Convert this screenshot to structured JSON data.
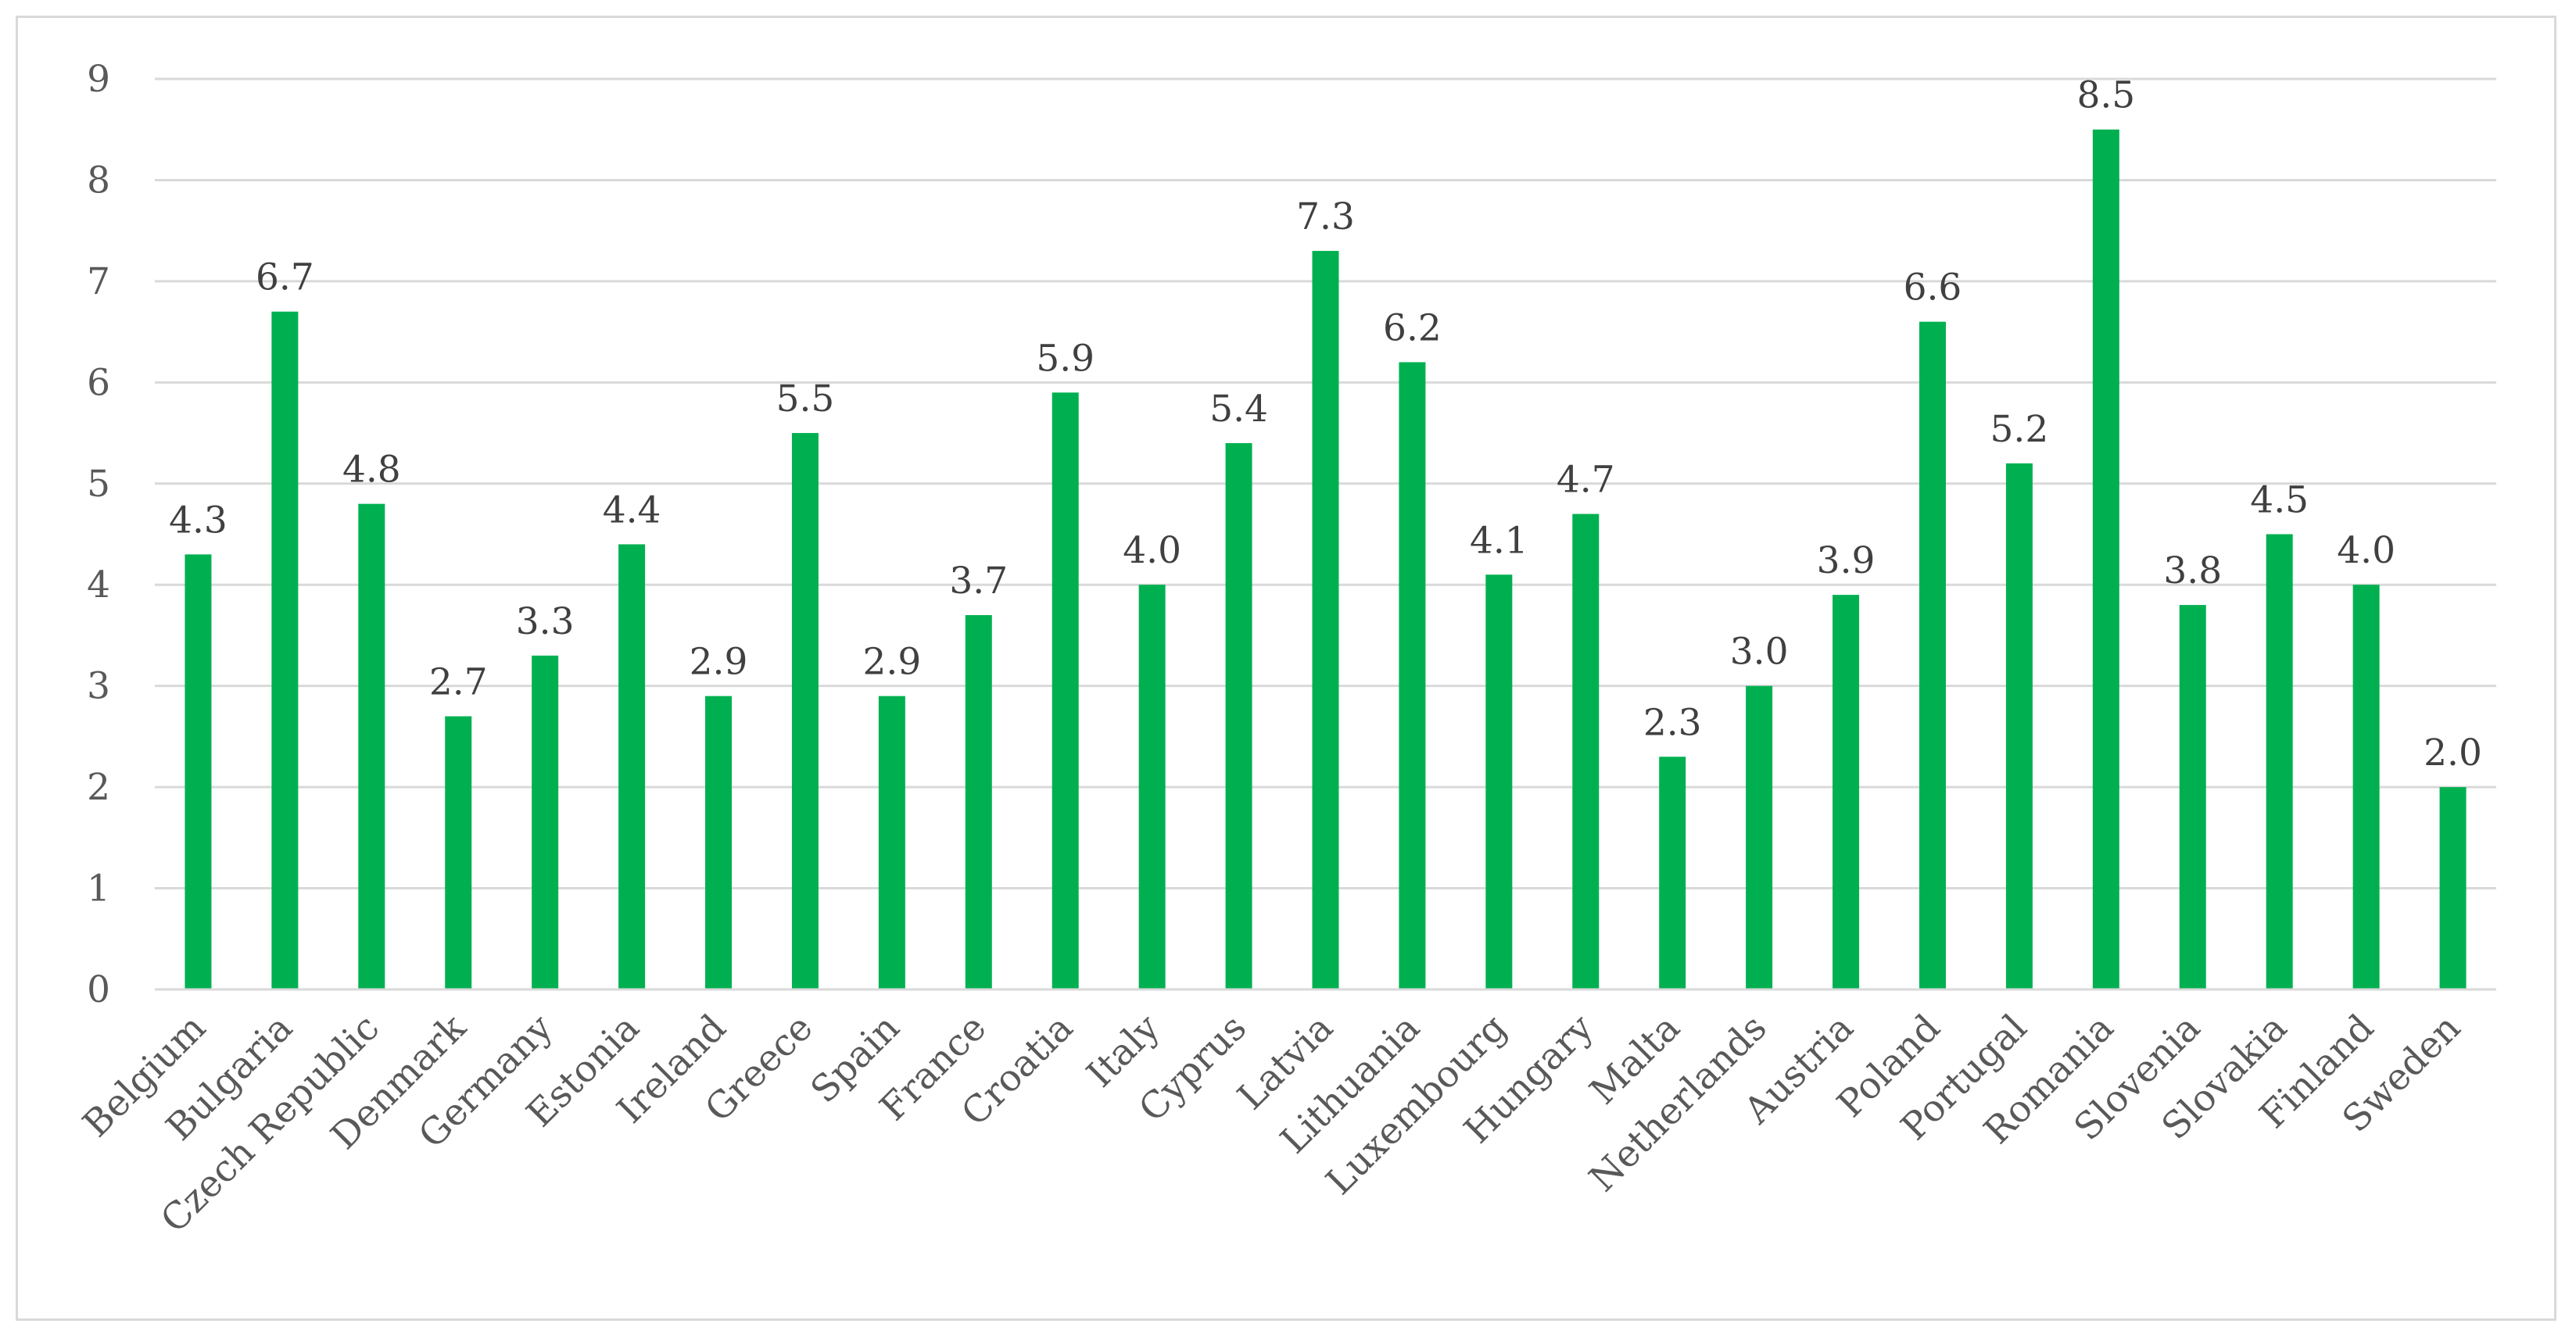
{
  "chart_data": {
    "type": "bar",
    "title": "",
    "xlabel": "",
    "ylabel": "",
    "ylim": [
      0,
      9
    ],
    "yticks": [
      0,
      1,
      2,
      3,
      4,
      5,
      6,
      7,
      8,
      9
    ],
    "grid": true,
    "legend": "none",
    "bar_color": "#00b050",
    "categories": [
      "Belgium",
      "Bulgaria",
      "Czech Republic",
      "Denmark",
      "Germany",
      "Estonia",
      "Ireland",
      "Greece",
      "Spain",
      "France",
      "Croatia",
      "Italy",
      "Cyprus",
      "Latvia",
      "Lithuania",
      "Luxembourg",
      "Hungary",
      "Malta",
      "Netherlands",
      "Austria",
      "Poland",
      "Portugal",
      "Romania",
      "Slovenia",
      "Slovakia",
      "Finland",
      "Sweden"
    ],
    "values": [
      4.3,
      6.7,
      4.8,
      2.7,
      3.3,
      4.4,
      2.9,
      5.5,
      2.9,
      3.7,
      5.9,
      4.0,
      5.4,
      7.3,
      6.2,
      4.1,
      4.7,
      2.3,
      3.0,
      3.9,
      6.6,
      5.2,
      8.5,
      3.8,
      4.5,
      4.0,
      2.0
    ],
    "data_labels": [
      "4.3",
      "6.7",
      "4.8",
      "2.7",
      "3.3",
      "4.4",
      "2.9",
      "5.5",
      "2.9",
      "3.7",
      "5.9",
      "4.0",
      "5.4",
      "7.3",
      "6.2",
      "4.1",
      "4.7",
      "2.3",
      "3.0",
      "3.9",
      "6.6",
      "5.2",
      "8.5",
      "3.8",
      "4.5",
      "4.0",
      "2.0"
    ]
  }
}
